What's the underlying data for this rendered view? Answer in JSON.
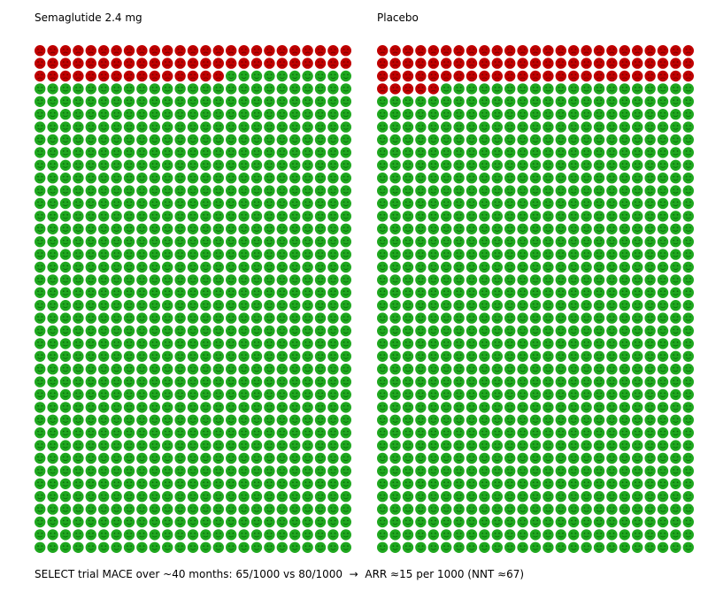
{
  "chart_data": {
    "type": "icon-array",
    "caption": "SELECT trial MACE over ~40 months: 65/1000 vs 80/1000  →  ARR ≈15 per 1000 (NNT ≈67)",
    "grid": {
      "columns": 25,
      "rows": 40,
      "total": 1000
    },
    "legend_colors": {
      "event": "#c00000",
      "no_event": "#1fa81f"
    },
    "panels": [
      {
        "title": "Semaglutide 2.4 mg",
        "events": 65,
        "total": 1000
      },
      {
        "title": "Placebo",
        "events": 80,
        "total": 1000
      }
    ]
  }
}
